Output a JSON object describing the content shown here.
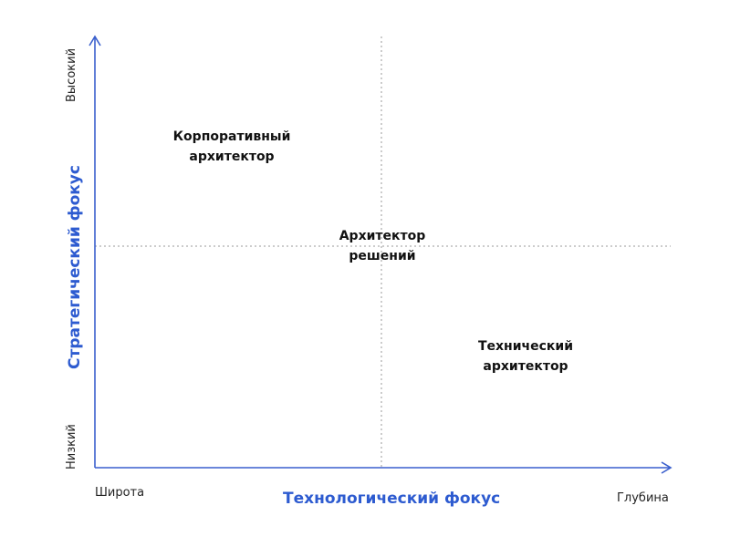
{
  "colors": {
    "axis": "#3a5fcd",
    "axis_title": "#2d5bd0",
    "guide": "#9a9a9a",
    "text": "#111111"
  },
  "x_axis": {
    "title": "Технологический фокус",
    "low_label": "Широта",
    "high_label": "Глубина"
  },
  "y_axis": {
    "title": "Стратегический фокус",
    "low_label": "Низкий",
    "high_label": "Высокий"
  },
  "roles": [
    {
      "line1": "Корпоративный",
      "line2": "архитектор"
    },
    {
      "line1": "Архитектор",
      "line2": "решений"
    },
    {
      "line1": "Технический",
      "line2": "архитектор"
    }
  ]
}
